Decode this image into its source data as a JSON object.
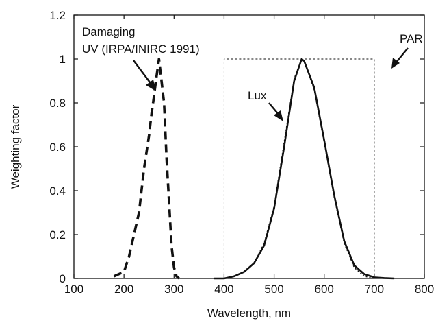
{
  "chart_data": {
    "type": "line",
    "title": "",
    "xlabel": "Wavelength, nm",
    "ylabel": "Weighting factor",
    "xlim": [
      100,
      800
    ],
    "ylim": [
      0,
      1.2
    ],
    "x_ticks": [
      100,
      200,
      300,
      400,
      500,
      600,
      700,
      800
    ],
    "y_ticks": [
      0,
      0.2,
      0.4,
      0.6,
      0.8,
      1,
      1.2
    ],
    "x_tick_labels": [
      "100",
      "200",
      "300",
      "400",
      "500",
      "600",
      "700",
      "800"
    ],
    "y_tick_labels": [
      "0",
      "0.2",
      "0.4",
      "0.6",
      "0.8",
      "1",
      "1.2"
    ],
    "grid": false,
    "series": [
      {
        "label_text": "Damaging UV (IRPA/INIRC 1991)",
        "style": "dashed",
        "x": [
          180,
          190,
          200,
          210,
          220,
          230,
          240,
          250,
          255,
          260,
          265,
          270,
          275,
          280,
          285,
          290,
          295,
          300,
          305,
          310
        ],
        "y": [
          0.01,
          0.02,
          0.03,
          0.1,
          0.2,
          0.3,
          0.5,
          0.65,
          0.75,
          0.83,
          0.92,
          1.0,
          0.9,
          0.8,
          0.55,
          0.35,
          0.15,
          0.05,
          0.01,
          0.0
        ]
      },
      {
        "label_text": "Lux",
        "style": "solid",
        "x": [
          380,
          400,
          420,
          440,
          460,
          480,
          500,
          520,
          540,
          555,
          560,
          580,
          600,
          620,
          640,
          660,
          680,
          700,
          720,
          740
        ],
        "y": [
          0.0,
          0.0,
          0.01,
          0.03,
          0.07,
          0.15,
          0.32,
          0.6,
          0.9,
          1.0,
          0.99,
          0.87,
          0.63,
          0.38,
          0.17,
          0.06,
          0.02,
          0.005,
          0.002,
          0.0
        ]
      },
      {
        "label_text": "",
        "style": "dotted",
        "x": [
          400,
          420,
          440,
          460,
          480,
          500,
          520,
          540,
          555,
          560,
          580,
          600,
          620,
          640,
          660,
          680,
          700
        ],
        "y": [
          0.0,
          0.01,
          0.03,
          0.07,
          0.16,
          0.33,
          0.62,
          0.91,
          1.0,
          0.99,
          0.86,
          0.62,
          0.37,
          0.16,
          0.05,
          0.01,
          0.0
        ]
      },
      {
        "label_text": "PAR",
        "style": "thin-dashed",
        "x": [
          400,
          400,
          700,
          700
        ],
        "y": [
          0,
          1,
          1,
          0
        ]
      }
    ],
    "annotations": [
      {
        "text_lines": [
          "Damaging",
          "UV (IRPA/INIRC 1991)"
        ]
      },
      {
        "text_lines": [
          "Lux"
        ]
      },
      {
        "text_lines": [
          "PAR"
        ]
      }
    ],
    "colors": {
      "line": "#111111",
      "axis": "#111111"
    }
  }
}
